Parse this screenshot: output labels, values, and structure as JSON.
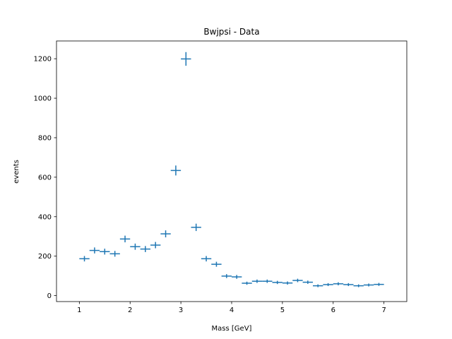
{
  "chart_data": {
    "type": "scatter",
    "title": "Bwjpsi - Data",
    "xlabel": "Mass [GeV]",
    "ylabel": "events",
    "xlim": [
      0.55,
      7.45
    ],
    "ylim": [
      -30,
      1290
    ],
    "xticks": [
      1,
      2,
      3,
      4,
      5,
      6,
      7
    ],
    "yticks": [
      0,
      200,
      400,
      600,
      800,
      1000,
      1200
    ],
    "grid": false,
    "bin_half_width": 0.1,
    "series": [
      {
        "color": "#1f77b4",
        "marker": "errorbar-cross",
        "x": [
          1.1,
          1.3,
          1.5,
          1.7,
          1.9,
          2.1,
          2.3,
          2.5,
          2.7,
          2.9,
          3.1,
          3.3,
          3.5,
          3.7,
          3.9,
          4.1,
          4.3,
          4.5,
          4.7,
          4.9,
          5.1,
          5.3,
          5.5,
          5.7,
          5.9,
          6.1,
          6.3,
          6.5,
          6.7,
          6.9
        ],
        "y": [
          187,
          229,
          223,
          212,
          287,
          248,
          236,
          256,
          313,
          634,
          1199,
          346,
          187,
          159,
          99,
          95,
          63,
          73,
          73,
          67,
          64,
          77,
          68,
          50,
          56,
          60,
          56,
          50,
          54,
          57
        ]
      }
    ]
  }
}
